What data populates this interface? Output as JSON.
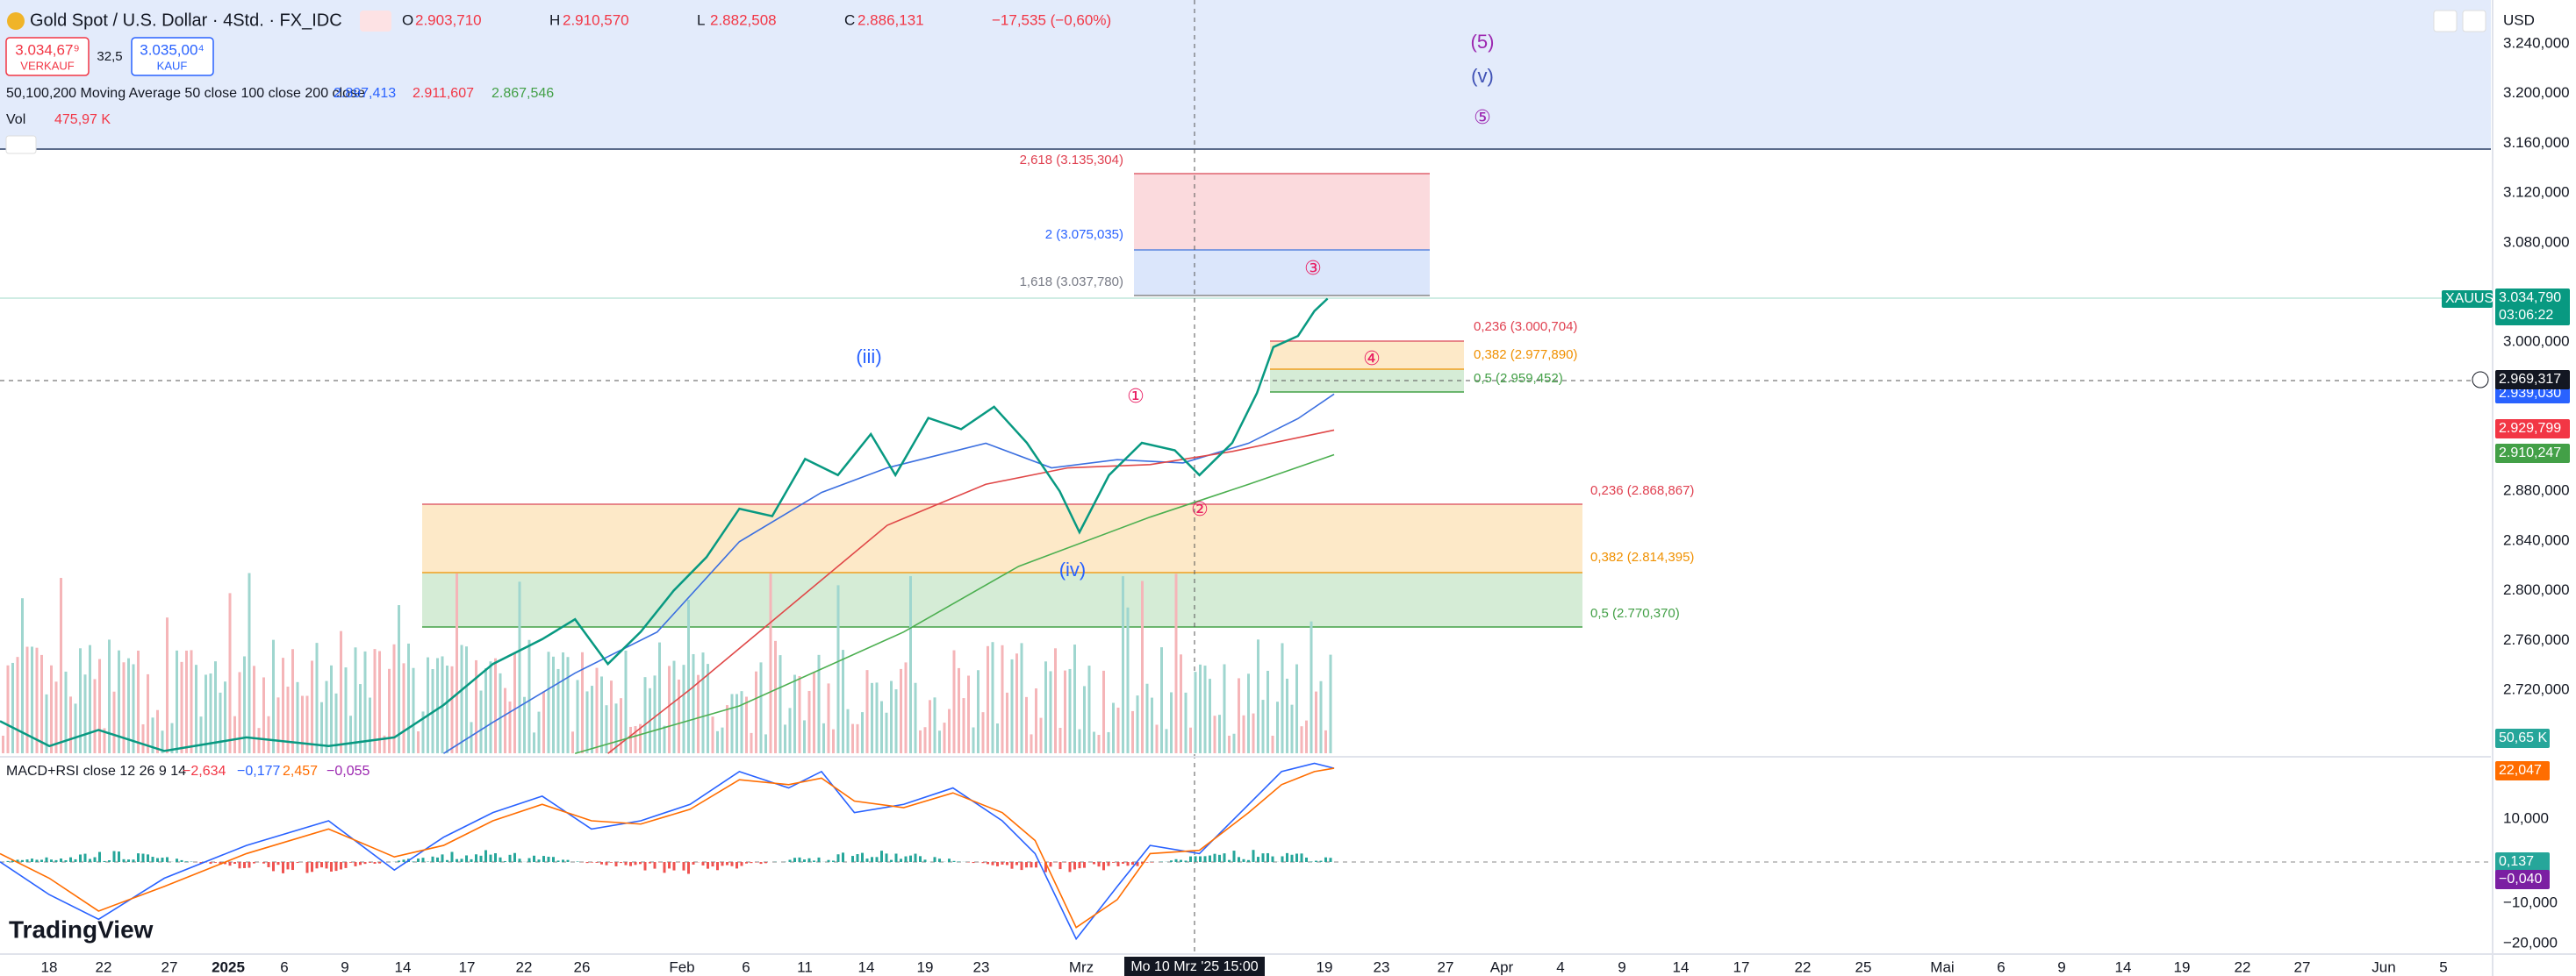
{
  "header": {
    "symbol": "Gold Spot / U.S. Dollar · 4Std. · FX_IDC",
    "ohlc": [
      {
        "key": "O",
        "value": "2.903,710"
      },
      {
        "key": "H",
        "value": "2.910,570"
      },
      {
        "key": "L",
        "value": "2.882,508"
      },
      {
        "key": "C",
        "value": "2.886,131"
      }
    ],
    "change": "−17,535 (−0,60%)"
  },
  "trade": {
    "sell_price": "3.034,67⁹",
    "sell_label": "VERKAUF",
    "spread": "32,5",
    "buy_price": "3.035,00⁴",
    "buy_label": "KAUF"
  },
  "indicators": {
    "ma_title": "50,100,200 Moving Average 50 close 100 close 200 close",
    "ma_values": [
      "2.897,413",
      "2.911,607",
      "2.867,546"
    ],
    "vol_title": "Vol",
    "vol_value": "475,97 K",
    "macd_title": "MACD+RSI close 12 26 9 14",
    "macd_values": [
      "−2,634",
      "−0,177",
      "2,457",
      "−0,055"
    ]
  },
  "price_axis": {
    "currency": "USD",
    "ticks": [
      {
        "value": 3240,
        "label": "3.240,000"
      },
      {
        "value": 3200,
        "label": "3.200,000"
      },
      {
        "value": 3160,
        "label": "3.160,000"
      },
      {
        "value": 3120,
        "label": "3.120,000"
      },
      {
        "value": 3080,
        "label": "3.080,000"
      },
      {
        "value": 3000,
        "label": "3.000,000"
      },
      {
        "value": 2880,
        "label": "2.880,000"
      },
      {
        "value": 2840,
        "label": "2.840,000"
      },
      {
        "value": 2800,
        "label": "2.800,000"
      },
      {
        "value": 2760,
        "label": "2.760,000"
      },
      {
        "value": 2720,
        "label": "2.720,000"
      }
    ],
    "symbol_badge": "XAUUSD",
    "last_price": "3.034,790",
    "countdown": "03:06:22",
    "crosshair_price": "2.969,317",
    "ma50_badge": "2.939,030",
    "ma100_badge": "2.929,799",
    "ma200_badge": "2.910,247",
    "volume_badge": "50,65 K"
  },
  "macd_axis": {
    "ticks": [
      "10,000",
      "−10,000",
      "−20,000"
    ],
    "rsi_badge": "22,047",
    "hist_badge": "0,137",
    "signal_badge": "−0,040"
  },
  "fib_labels": [
    "2,618 (3.135,304)",
    "2 (3.075,035)",
    "1,618 (3.037,780)",
    "0,236 (3.000,704)",
    "0,382 (2.977,890)",
    "0,5 (2.959,452)",
    "0,236 (2.868,867)",
    "0,382 (2.814,395)",
    "0,5 (2.770,370)"
  ],
  "wave_labels": [
    "(5)",
    "(v)",
    "⑤",
    "(iii)",
    "①",
    "②",
    "③",
    "④",
    "(iv)"
  ],
  "time_axis": {
    "labels": [
      "18",
      "22",
      "27",
      "2025",
      "6",
      "9",
      "14",
      "17",
      "22",
      "26",
      "Feb",
      "6",
      "11",
      "14",
      "19",
      "23",
      "Mrz",
      "19",
      "23",
      "27",
      "Apr",
      "4",
      "9",
      "14",
      "17",
      "22",
      "25",
      "Mai",
      "6",
      "9",
      "14",
      "19",
      "22",
      "27",
      "Jun",
      "5"
    ],
    "crosshair": "Mo 10 Mrz '25  15:00"
  },
  "price_closes": [
    2695,
    2675,
    2688,
    2671,
    2682,
    2675,
    2682,
    2708,
    2741,
    2761,
    2777,
    2741,
    2767,
    2800,
    2827,
    2866,
    2860,
    2906,
    2893,
    2926,
    2893,
    2939,
    2930,
    2948,
    2919,
    2880,
    2847,
    2893,
    2919,
    2913,
    2893,
    2919,
    2959,
    2996,
    3005,
    3025,
    3035
  ],
  "logo": "TradingView"
}
